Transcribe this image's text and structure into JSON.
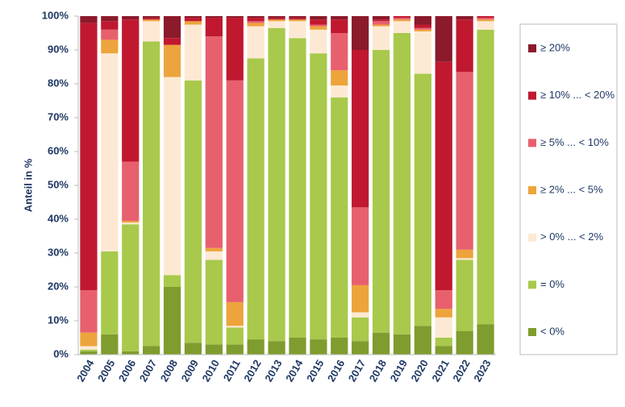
{
  "chart_data": {
    "type": "stacked_bar",
    "y_label": "Anteil in %",
    "categories": [
      "2004",
      "2005",
      "2006",
      "2007",
      "2008",
      "2009",
      "2010",
      "2011",
      "2012",
      "2013",
      "2014",
      "2015",
      "2016",
      "2017",
      "2018",
      "2019",
      "2020",
      "2021",
      "2022",
      "2023"
    ],
    "series": [
      {
        "name": "< 0%",
        "color": "#7f9c2e",
        "values": [
          1,
          6,
          1,
          2.5,
          20,
          3.5,
          3,
          3,
          4.5,
          4,
          5,
          4.5,
          5,
          4,
          6.5,
          6,
          8.5,
          2.5,
          7,
          9
        ]
      },
      {
        "name": "= 0%",
        "color": "#a8c94c",
        "values": [
          0.5,
          24.5,
          37.5,
          90,
          3.5,
          77.5,
          25,
          5,
          83,
          92.5,
          88.5,
          84.5,
          71,
          7,
          83.5,
          89,
          74.5,
          2.5,
          21,
          87
        ]
      },
      {
        "name": "> 0% ... < 2%",
        "color": "#fde9d3",
        "values": [
          1,
          58.5,
          0.5,
          6,
          58.5,
          16.5,
          2.5,
          0.5,
          9.5,
          2,
          5,
          7,
          3.5,
          1.5,
          7,
          3.5,
          12.5,
          6,
          0.5,
          2.5
        ]
      },
      {
        "name": "≥ 2% ... < 5%",
        "color": "#eda43c",
        "values": [
          4,
          4,
          0.5,
          0.5,
          9.5,
          1,
          1,
          7,
          1,
          0.5,
          0.5,
          1,
          4.5,
          8,
          0.5,
          0.5,
          0.5,
          2.5,
          2.5,
          0.5
        ]
      },
      {
        "name": "≥ 5% ... < 10%",
        "color": "#e8606e",
        "values": [
          12.5,
          3,
          17.5,
          0,
          0,
          0,
          62.5,
          65.5,
          0.5,
          0,
          0,
          0.5,
          11,
          23,
          1,
          0.5,
          0.5,
          5.5,
          52.5,
          0.5
        ]
      },
      {
        "name": "≥ 10% ... < 20%",
        "color": "#c0182f",
        "values": [
          79,
          2.5,
          42,
          0.5,
          2,
          1,
          5.5,
          18.5,
          1,
          0.5,
          0.5,
          1.5,
          4,
          46.5,
          0.5,
          0.5,
          1,
          67.5,
          15.5,
          0.5
        ]
      },
      {
        "name": "≥ 20%",
        "color": "#8b1a2b",
        "values": [
          2,
          1.5,
          1,
          0.5,
          6.5,
          0.5,
          0.5,
          0.5,
          0.5,
          0.5,
          0.5,
          1,
          1,
          10,
          1,
          0,
          2.5,
          13.5,
          1,
          0
        ]
      }
    ],
    "ylim": [
      0,
      100
    ],
    "yticks": [
      {
        "value": 0,
        "label": "0%"
      },
      {
        "value": 10,
        "label": "10%"
      },
      {
        "value": 20,
        "label": "20%"
      },
      {
        "value": 30,
        "label": "30%"
      },
      {
        "value": 40,
        "label": "40%"
      },
      {
        "value": 50,
        "label": "50%"
      },
      {
        "value": 60,
        "label": "60%"
      },
      {
        "value": 70,
        "label": "70%"
      },
      {
        "value": 80,
        "label": "80%"
      },
      {
        "value": 90,
        "label": "90%"
      },
      {
        "value": 100,
        "label": "100%"
      }
    ],
    "grid": false,
    "legend": "right"
  }
}
